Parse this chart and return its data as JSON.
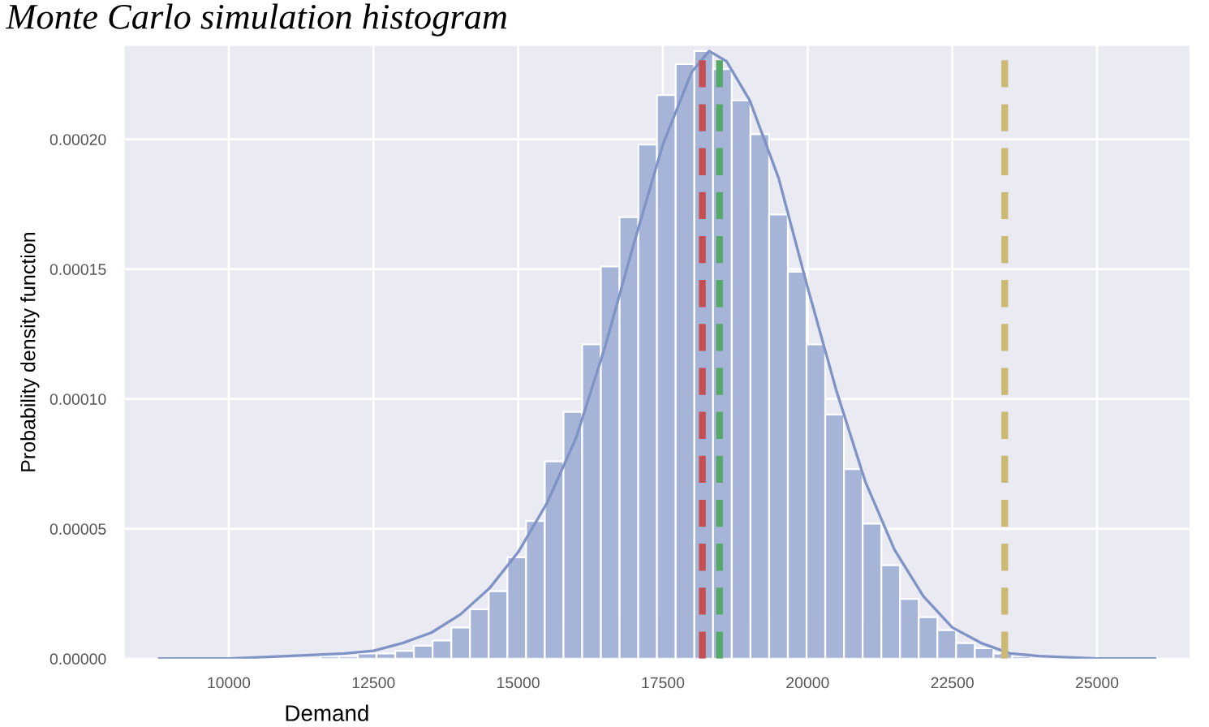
{
  "chart_data": {
    "type": "histogram",
    "title": "Monte Carlo simulation histogram",
    "xlabel": "Demand",
    "ylabel": "Probability density function",
    "bins": [
      11261,
      11584,
      11907,
      12230,
      12553,
      12876,
      13199,
      13522,
      13845,
      14168,
      14491,
      14814,
      15137,
      15460,
      15783,
      16106,
      16429,
      16752,
      17075,
      17398,
      17721,
      18044,
      18367,
      18690,
      19013,
      19336,
      19659,
      19982,
      20305,
      20628,
      20951,
      21274,
      21597,
      21920,
      22243,
      22566,
      22889,
      23212,
      23535,
      23858,
      24181
    ],
    "series": [
      {
        "color": "#a6b5d7",
        "values": [
          null,
          1e-06,
          1e-06,
          2e-06,
          2e-06,
          3e-06,
          5e-06,
          7e-06,
          1.2e-05,
          1.9e-05,
          2.6e-05,
          3.9e-05,
          5.3e-05,
          7.6e-05,
          9.5e-05,
          0.000121,
          0.000151,
          0.00017,
          0.000198,
          0.000217,
          0.000229,
          0.000234,
          0.000227,
          0.000215,
          0.000202,
          0.000171,
          0.000149,
          0.000121,
          9.4e-05,
          7.3e-05,
          5.2e-05,
          3.6e-05,
          2.3e-05,
          1.6e-05,
          1.1e-05,
          6e-06,
          4e-06,
          2e-06,
          1e-06,
          null
        ]
      },
      {
        "type": "line",
        "color": "#7f93c6",
        "x": [
          8800,
          10000,
          11000,
          12000,
          12500,
          13000,
          13500,
          14000,
          14500,
          15000,
          15500,
          16000,
          16500,
          17000,
          17500,
          18000,
          18300,
          18600,
          19000,
          19500,
          20000,
          20500,
          21000,
          21500,
          22000,
          22500,
          23000,
          23500,
          24000,
          25000,
          26000
        ],
        "values": [
          0,
          0,
          1e-06,
          2e-06,
          3e-06,
          6e-06,
          1e-05,
          1.7e-05,
          2.7e-05,
          4.1e-05,
          6e-05,
          8.5e-05,
          0.00012,
          0.00016,
          0.000198,
          0.000226,
          0.000234,
          0.00023,
          0.000215,
          0.000185,
          0.000143,
          0.000103,
          6.8e-05,
          4.2e-05,
          2.4e-05,
          1.2e-05,
          6e-06,
          2e-06,
          1e-06,
          0,
          0
        ]
      }
    ],
    "ref_lines": [
      {
        "axis": "x",
        "value": 18182,
        "color": "#c44e52",
        "line_style": "dashed"
      },
      {
        "axis": "x",
        "value": 18478,
        "color": "#55a868",
        "line_style": "dashed"
      },
      {
        "axis": "x",
        "value": 23406,
        "color": "#ccb974",
        "line_style": "dashed"
      }
    ],
    "xlim": [
      8200,
      26600
    ],
    "ylim": [
      0,
      0.000236
    ],
    "xticks": [
      10000,
      12500,
      15000,
      17500,
      20000,
      22500,
      25000
    ],
    "yticks": [
      {
        "value": 0,
        "label": "0.00000"
      },
      {
        "value": 5e-05,
        "label": "0.00005"
      },
      {
        "value": 0.0001,
        "label": "0.00010"
      },
      {
        "value": 0.00015,
        "label": "0.00015"
      },
      {
        "value": 0.0002,
        "label": "0.00020"
      }
    ],
    "grid": true,
    "marker": "none",
    "legend": false
  }
}
